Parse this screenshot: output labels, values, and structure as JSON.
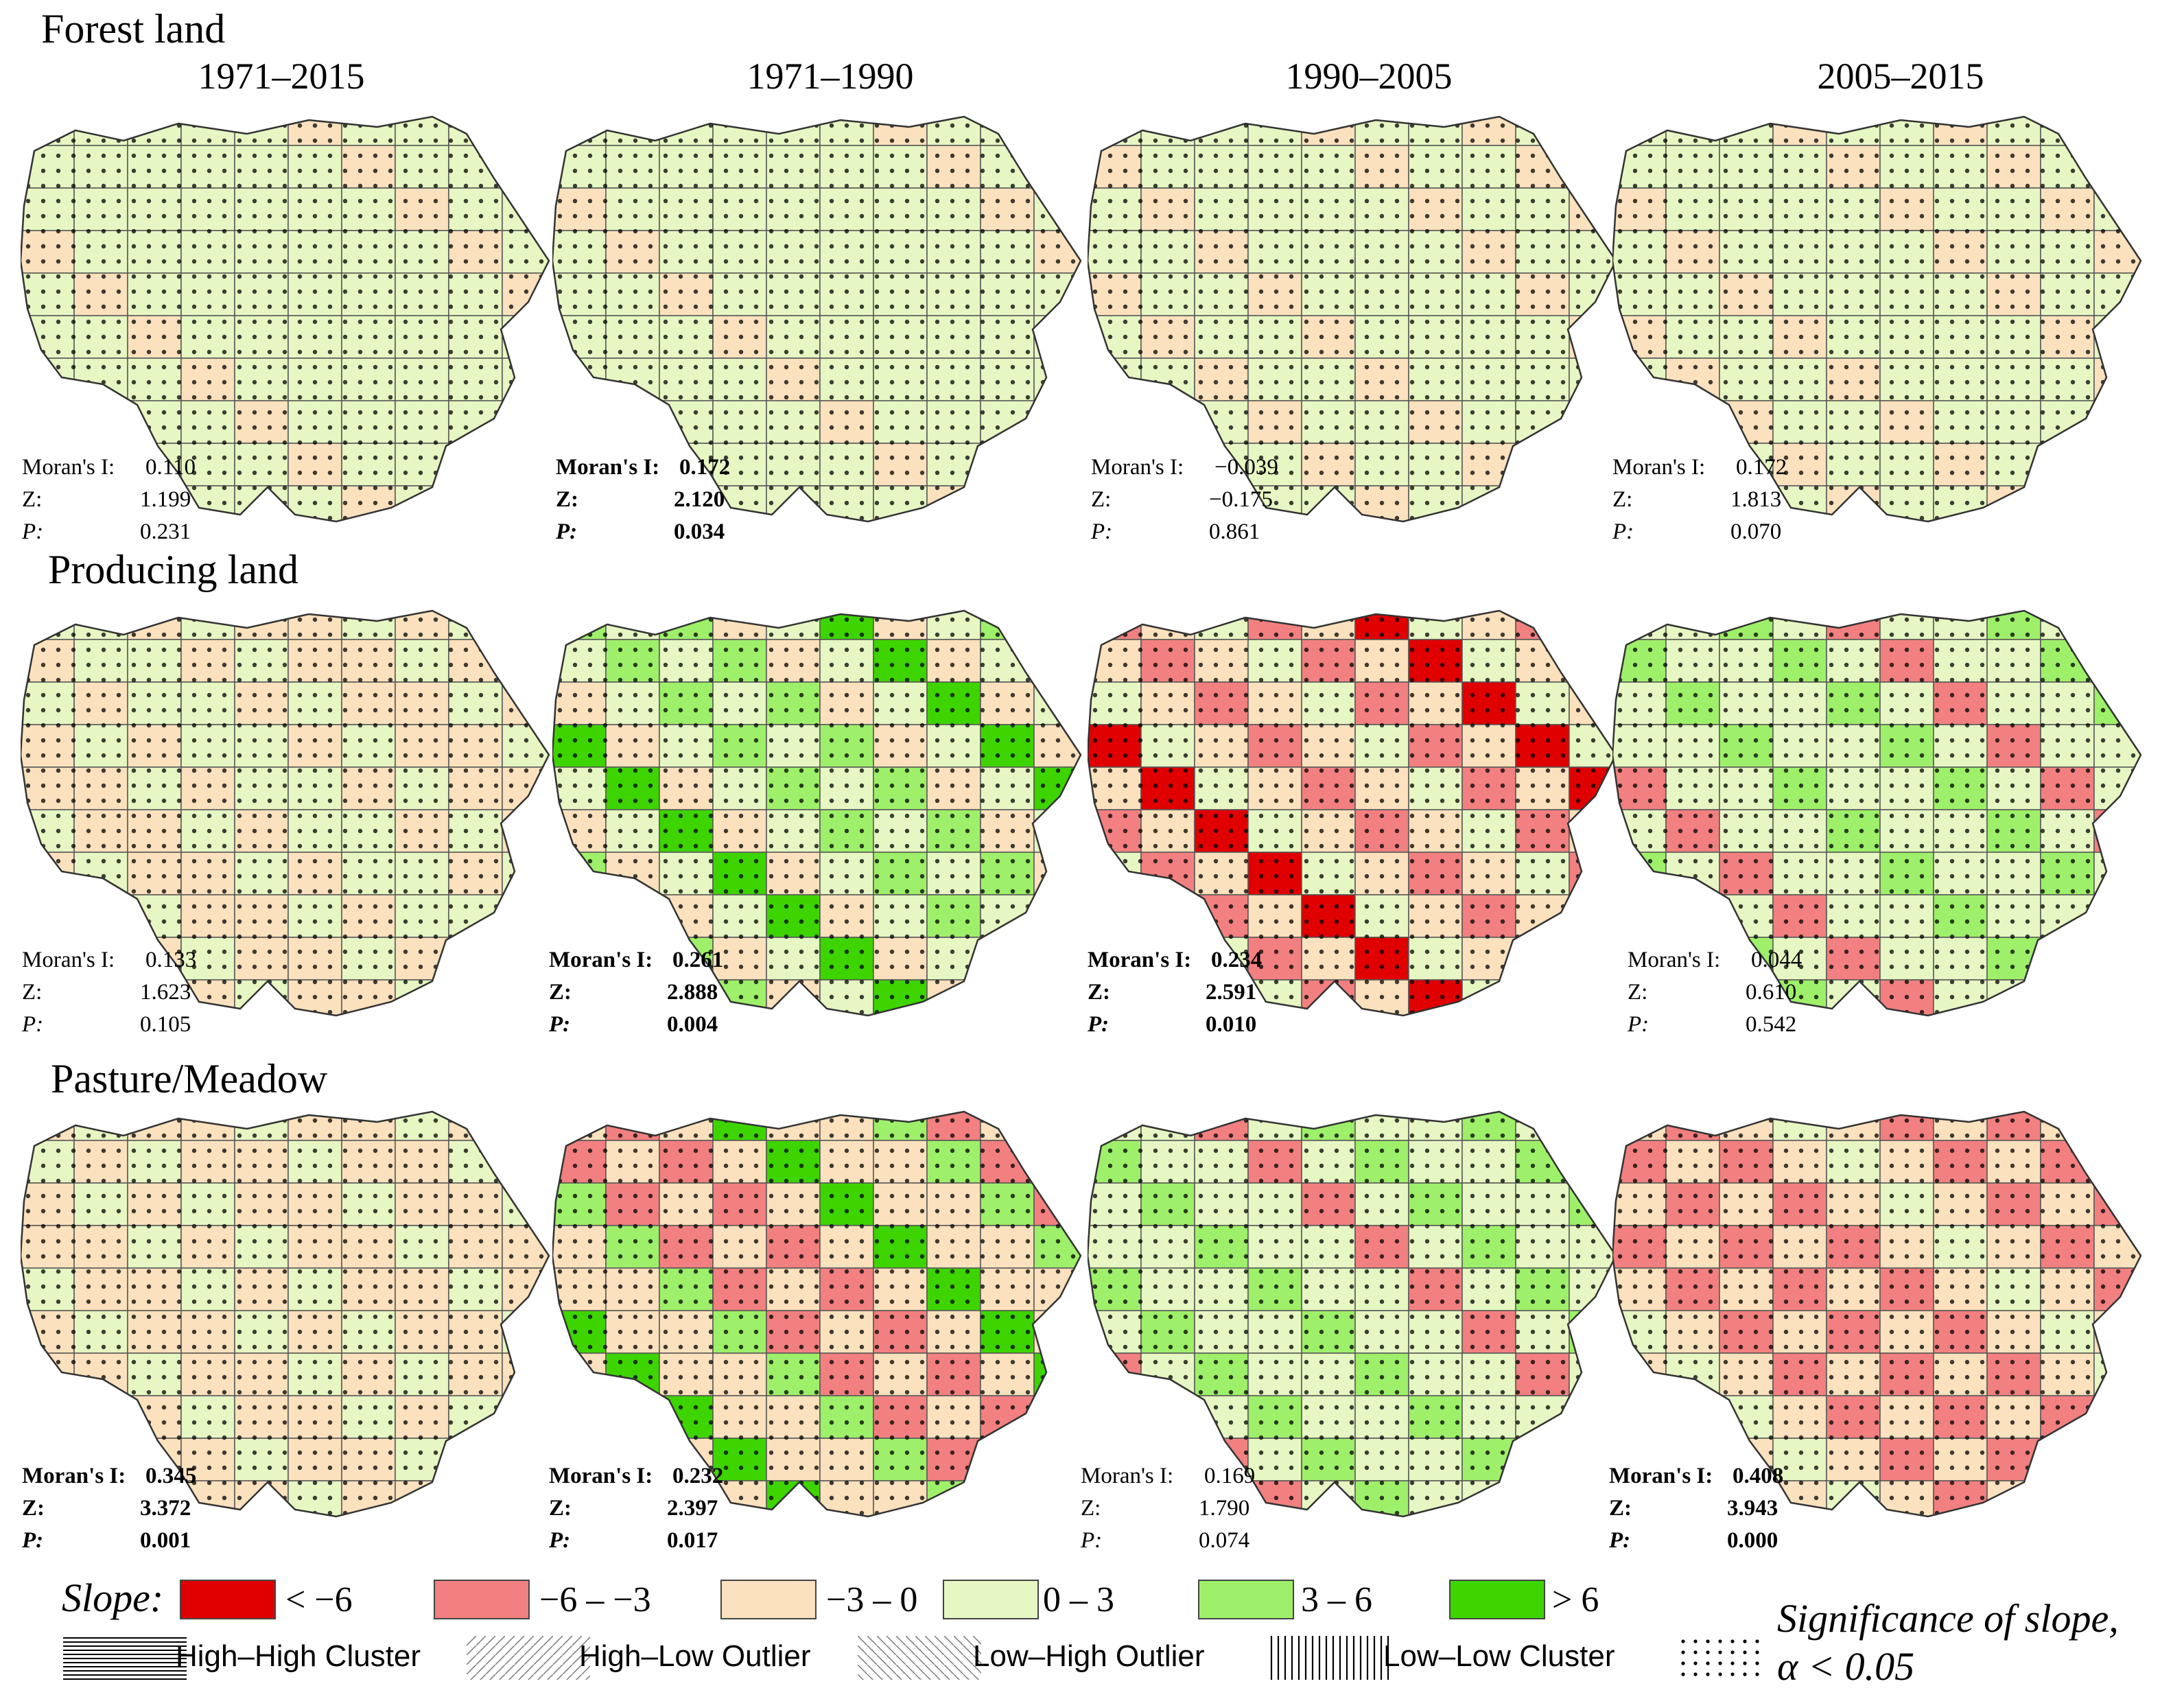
{
  "rows": [
    {
      "title": "Forest land",
      "maps": [
        {
          "period": "1971–2015",
          "moran": "0.110",
          "z": "1.199",
          "p": "0.231",
          "significant": false
        },
        {
          "period": "1971–1990",
          "moran": "0.172",
          "z": "2.120",
          "p": "0.034",
          "significant": true
        },
        {
          "period": "1990–2005",
          "moran": "−0.039",
          "z": "−0.175",
          "p": "0.861",
          "significant": false
        },
        {
          "period": "2005–2015",
          "moran": "0.172",
          "z": "1.813",
          "p": "0.070",
          "significant": false
        }
      ]
    },
    {
      "title": "Producing land",
      "maps": [
        {
          "moran": "0.133",
          "z": "1.623",
          "p": "0.105",
          "significant": false
        },
        {
          "moran": "0.261",
          "z": "2.888",
          "p": "0.004",
          "significant": true
        },
        {
          "moran": "0.234",
          "z": "2.591",
          "p": "0.010",
          "significant": true
        },
        {
          "moran": "0.044",
          "z": "0.610",
          "p": "0.542",
          "significant": false
        }
      ]
    },
    {
      "title": "Pasture/Meadow",
      "maps": [
        {
          "moran": "0.345",
          "z": "3.372",
          "p": "0.001",
          "significant": true
        },
        {
          "moran": "0.232",
          "z": "2.397",
          "p": "0.017",
          "significant": true
        },
        {
          "moran": "0.169",
          "z": "1.790",
          "p": "0.074",
          "significant": false
        },
        {
          "moran": "0.408",
          "z": "3.943",
          "p": "0.000",
          "significant": true
        }
      ]
    }
  ],
  "stat_labels": {
    "moran": "Moran's I:",
    "moran_tight": "Moran's I:",
    "z": "Z:",
    "p": "P:"
  },
  "legend": {
    "slope_label": "Slope:",
    "classes": [
      {
        "label": "< −6",
        "color": "#e00000"
      },
      {
        "label": "−6 – −3",
        "color": "#f28080"
      },
      {
        "label": "−3 – 0",
        "color": "#fbe1bd"
      },
      {
        "label": "0 – 3",
        "color": "#e6f7c3"
      },
      {
        "label": "3 – 6",
        "color": "#9ef06a"
      },
      {
        "label": "> 6",
        "color": "#3ed400"
      }
    ],
    "patterns": [
      {
        "label": "High–High Cluster"
      },
      {
        "label": "High–Low Outlier"
      },
      {
        "label": "Low–High Outlier"
      },
      {
        "label": "Low–Low Cluster"
      }
    ],
    "significance_line1": "Significance of slope,",
    "significance_line2": "α < 0.05"
  }
}
